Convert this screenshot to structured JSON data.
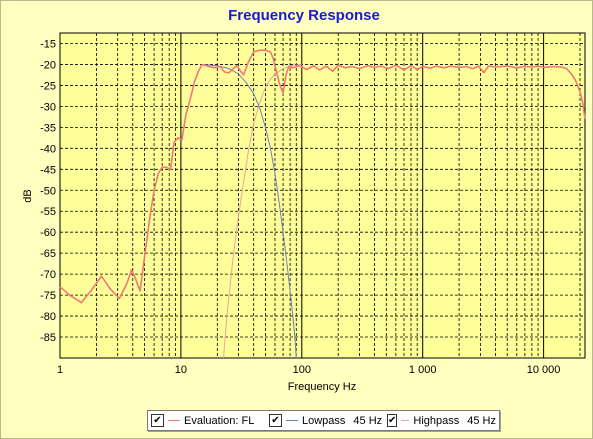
{
  "chart_data": {
    "type": "line",
    "title": "Frequency Response",
    "xlabel": "Frequency Hz",
    "ylabel": "dB",
    "xscale": "log",
    "xlim": [
      1,
      22000
    ],
    "ylim": [
      -90,
      -12.5
    ],
    "x_ticks": [
      {
        "value": 1,
        "label": "1"
      },
      {
        "value": 10,
        "label": "10"
      },
      {
        "value": 100,
        "label": "100"
      },
      {
        "value": 1000,
        "label": "1 000"
      },
      {
        "value": 10000,
        "label": "10 000"
      }
    ],
    "y_ticks": [
      -15,
      -20,
      -25,
      -30,
      -35,
      -40,
      -45,
      -50,
      -55,
      -60,
      -65,
      -70,
      -75,
      -80,
      -85
    ],
    "grid": true,
    "legend_position": "bottom",
    "series": [
      {
        "name": "Evaluation: FL",
        "color": "#f07878",
        "points": [
          [
            1,
            -73
          ],
          [
            1.2,
            -75
          ],
          [
            1.5,
            -76.8
          ],
          [
            1.8,
            -74
          ],
          [
            2.2,
            -70.5
          ],
          [
            2.6,
            -73.5
          ],
          [
            3.1,
            -75.8
          ],
          [
            3.6,
            -72
          ],
          [
            3.9,
            -69
          ],
          [
            4.2,
            -71
          ],
          [
            4.6,
            -74
          ],
          [
            5,
            -66
          ],
          [
            5.5,
            -57
          ],
          [
            6,
            -50
          ],
          [
            6.5,
            -46
          ],
          [
            7,
            -44.5
          ],
          [
            7.6,
            -44.5
          ],
          [
            8.2,
            -45
          ],
          [
            8.8,
            -38.5
          ],
          [
            9.5,
            -37.5
          ],
          [
            10.2,
            -38
          ],
          [
            11,
            -32
          ],
          [
            12,
            -28
          ],
          [
            13,
            -24
          ],
          [
            14,
            -21.5
          ],
          [
            15,
            -20
          ],
          [
            17,
            -20.5
          ],
          [
            19,
            -20.8
          ],
          [
            21,
            -20.5
          ],
          [
            23,
            -21.8
          ],
          [
            25,
            -22
          ],
          [
            27,
            -21
          ],
          [
            29,
            -20.3
          ],
          [
            31,
            -21.5
          ],
          [
            33,
            -22.5
          ],
          [
            36,
            -19.5
          ],
          [
            40,
            -17
          ],
          [
            45,
            -16.6
          ],
          [
            50,
            -16.6
          ],
          [
            55,
            -17
          ],
          [
            58,
            -18.5
          ],
          [
            62,
            -22
          ],
          [
            66,
            -25
          ],
          [
            70,
            -26.8
          ],
          [
            74,
            -22.5
          ],
          [
            78,
            -20.5
          ],
          [
            85,
            -20.8
          ],
          [
            95,
            -20.3
          ],
          [
            110,
            -21.2
          ],
          [
            125,
            -20.3
          ],
          [
            140,
            -21.3
          ],
          [
            160,
            -20.4
          ],
          [
            180,
            -21.6
          ],
          [
            200,
            -20.2
          ],
          [
            230,
            -20.8
          ],
          [
            260,
            -20.5
          ],
          [
            300,
            -21
          ],
          [
            350,
            -20.3
          ],
          [
            400,
            -20.7
          ],
          [
            450,
            -20.4
          ],
          [
            520,
            -21
          ],
          [
            600,
            -20.2
          ],
          [
            700,
            -21.3
          ],
          [
            800,
            -20.3
          ],
          [
            900,
            -21.2
          ],
          [
            1000,
            -20.5
          ],
          [
            1150,
            -20.9
          ],
          [
            1300,
            -20.4
          ],
          [
            1500,
            -20.8
          ],
          [
            1700,
            -20.4
          ],
          [
            2000,
            -20.7
          ],
          [
            2300,
            -20.5
          ],
          [
            2600,
            -21
          ],
          [
            2900,
            -20.4
          ],
          [
            3200,
            -22
          ],
          [
            3500,
            -20.4
          ],
          [
            4000,
            -20.6
          ],
          [
            5000,
            -20.4
          ],
          [
            6000,
            -20.8
          ],
          [
            7000,
            -20.5
          ],
          [
            8000,
            -20.6
          ],
          [
            9000,
            -20.4
          ],
          [
            10000,
            -20.7
          ],
          [
            12000,
            -20.5
          ],
          [
            14000,
            -20.6
          ],
          [
            15500,
            -21
          ],
          [
            17000,
            -22.3
          ],
          [
            18500,
            -24
          ],
          [
            20000,
            -26.5
          ],
          [
            21000,
            -29
          ],
          [
            22000,
            -33
          ]
        ]
      },
      {
        "name": "Lowpass",
        "filter": "45 Hz",
        "color": "#6e7ebe",
        "points": [
          [
            15,
            -20
          ],
          [
            20,
            -20.3
          ],
          [
            25,
            -21
          ],
          [
            30,
            -22.3
          ],
          [
            35,
            -24.5
          ],
          [
            40,
            -27
          ],
          [
            45,
            -30.5
          ],
          [
            50,
            -35
          ],
          [
            55,
            -40
          ],
          [
            60,
            -46
          ],
          [
            65,
            -53
          ],
          [
            70,
            -60
          ],
          [
            75,
            -67
          ],
          [
            80,
            -74
          ],
          [
            85,
            -81
          ],
          [
            88,
            -86
          ],
          [
            90,
            -90
          ]
        ]
      },
      {
        "name": "Highpass",
        "filter": "45 Hz",
        "color": "#f0a2a2",
        "points": [
          [
            22.5,
            -90
          ],
          [
            24,
            -80
          ],
          [
            27,
            -66
          ],
          [
            30,
            -56
          ],
          [
            33,
            -48
          ],
          [
            36,
            -41
          ],
          [
            40,
            -34
          ],
          [
            45,
            -29
          ],
          [
            50,
            -25.5
          ],
          [
            55,
            -23.5
          ],
          [
            60,
            -22.3
          ],
          [
            70,
            -21
          ],
          [
            80,
            -20.3
          ],
          [
            100,
            -20
          ]
        ]
      }
    ]
  },
  "legend": {
    "items": [
      {
        "label": "Evaluation: FL",
        "filter": "",
        "checked": "✔",
        "color": "#f07878"
      },
      {
        "label": "Lowpass",
        "filter": "45 Hz",
        "checked": "✔",
        "color": "#6e7ebe"
      },
      {
        "label": "Highpass",
        "filter": "45 Hz",
        "checked": "✔",
        "color": "#f0a2a2"
      }
    ]
  }
}
